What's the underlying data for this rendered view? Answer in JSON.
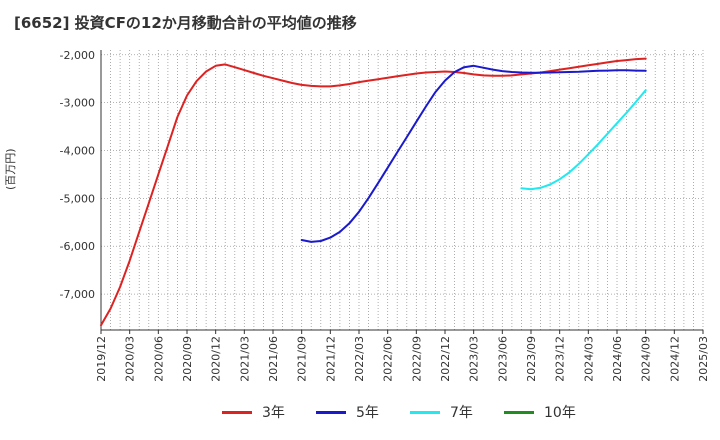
{
  "title": "[6652]  投資CFの12か月移動合計の平均値の推移",
  "ylabel": "(百万円)",
  "chart_data": {
    "type": "line",
    "title": "[6652]  投資CFの12か月移動合計の平均値の推移",
    "ylabel": "(百万円)",
    "xlabel": "",
    "ylim": [
      -7750,
      -1900
    ],
    "yticks": [
      -2000,
      -3000,
      -4000,
      -5000,
      -6000,
      -7000
    ],
    "ytick_labels": [
      "-2,000",
      "-3,000",
      "-4,000",
      "-5,000",
      "-6,000",
      "-7,000"
    ],
    "xticks": [
      "2019/12",
      "2020/03",
      "2020/06",
      "2020/09",
      "2020/12",
      "2021/03",
      "2021/06",
      "2021/09",
      "2021/12",
      "2022/03",
      "2022/06",
      "2022/09",
      "2022/12",
      "2023/03",
      "2023/06",
      "2023/09",
      "2023/12",
      "2024/03",
      "2024/06",
      "2024/09",
      "2024/12",
      "2025/03"
    ],
    "xlim": [
      "2019/12",
      "2025/03"
    ],
    "grid": true,
    "legend_position": "bottom",
    "series": [
      {
        "name": "3年",
        "color": "#dd2222",
        "x": [
          "2019/12",
          "2020/01",
          "2020/02",
          "2020/03",
          "2020/04",
          "2020/05",
          "2020/06",
          "2020/07",
          "2020/08",
          "2020/09",
          "2020/10",
          "2020/11",
          "2020/12",
          "2021/01",
          "2021/02",
          "2021/03",
          "2021/04",
          "2021/05",
          "2021/06",
          "2021/07",
          "2021/08",
          "2021/09",
          "2021/10",
          "2021/11",
          "2021/12",
          "2022/01",
          "2022/02",
          "2022/03",
          "2022/04",
          "2022/05",
          "2022/06",
          "2022/07",
          "2022/08",
          "2022/09",
          "2022/10",
          "2022/11",
          "2022/12",
          "2023/01",
          "2023/02",
          "2023/03",
          "2023/04",
          "2023/05",
          "2023/06",
          "2023/07",
          "2023/08",
          "2023/09",
          "2023/10",
          "2023/11",
          "2023/12",
          "2024/01",
          "2024/02",
          "2024/03",
          "2024/04",
          "2024/05",
          "2024/06",
          "2024/07",
          "2024/08",
          "2024/09"
        ],
        "values": [
          -7650,
          -7300,
          -6850,
          -6300,
          -5700,
          -5100,
          -4500,
          -3900,
          -3300,
          -2850,
          -2550,
          -2350,
          -2230,
          -2200,
          -2260,
          -2320,
          -2380,
          -2440,
          -2490,
          -2540,
          -2590,
          -2630,
          -2650,
          -2660,
          -2660,
          -2640,
          -2610,
          -2570,
          -2540,
          -2510,
          -2480,
          -2450,
          -2420,
          -2390,
          -2370,
          -2360,
          -2350,
          -2360,
          -2380,
          -2410,
          -2430,
          -2440,
          -2440,
          -2430,
          -2410,
          -2390,
          -2370,
          -2340,
          -2310,
          -2280,
          -2250,
          -2220,
          -2190,
          -2160,
          -2130,
          -2110,
          -2090,
          -2080
        ]
      },
      {
        "name": "5年",
        "color": "#1a1acc",
        "x": [
          "2021/09",
          "2021/10",
          "2021/11",
          "2021/12",
          "2022/01",
          "2022/02",
          "2022/03",
          "2022/04",
          "2022/05",
          "2022/06",
          "2022/07",
          "2022/08",
          "2022/09",
          "2022/10",
          "2022/11",
          "2022/12",
          "2023/01",
          "2023/02",
          "2023/03",
          "2023/04",
          "2023/05",
          "2023/06",
          "2023/07",
          "2023/08",
          "2023/09",
          "2023/10",
          "2023/11",
          "2023/12",
          "2024/01",
          "2024/02",
          "2024/03",
          "2024/04",
          "2024/05",
          "2024/06",
          "2024/07",
          "2024/08",
          "2024/09"
        ],
        "values": [
          -5870,
          -5910,
          -5890,
          -5820,
          -5700,
          -5520,
          -5280,
          -4990,
          -4680,
          -4360,
          -4040,
          -3720,
          -3400,
          -3080,
          -2780,
          -2540,
          -2360,
          -2260,
          -2230,
          -2270,
          -2310,
          -2340,
          -2360,
          -2370,
          -2375,
          -2375,
          -2370,
          -2365,
          -2360,
          -2355,
          -2345,
          -2335,
          -2330,
          -2325,
          -2325,
          -2330,
          -2335
        ]
      },
      {
        "name": "7年",
        "color": "#22e8f0",
        "x": [
          "2023/08",
          "2023/09",
          "2023/10",
          "2023/11",
          "2023/12",
          "2024/01",
          "2024/02",
          "2024/03",
          "2024/04",
          "2024/05",
          "2024/06",
          "2024/07",
          "2024/08",
          "2024/09"
        ],
        "values": [
          -4790,
          -4810,
          -4780,
          -4710,
          -4600,
          -4460,
          -4280,
          -4080,
          -3870,
          -3650,
          -3430,
          -3210,
          -2980,
          -2740
        ]
      },
      {
        "name": "10年",
        "color": "#228b22",
        "x": [],
        "values": []
      }
    ]
  }
}
